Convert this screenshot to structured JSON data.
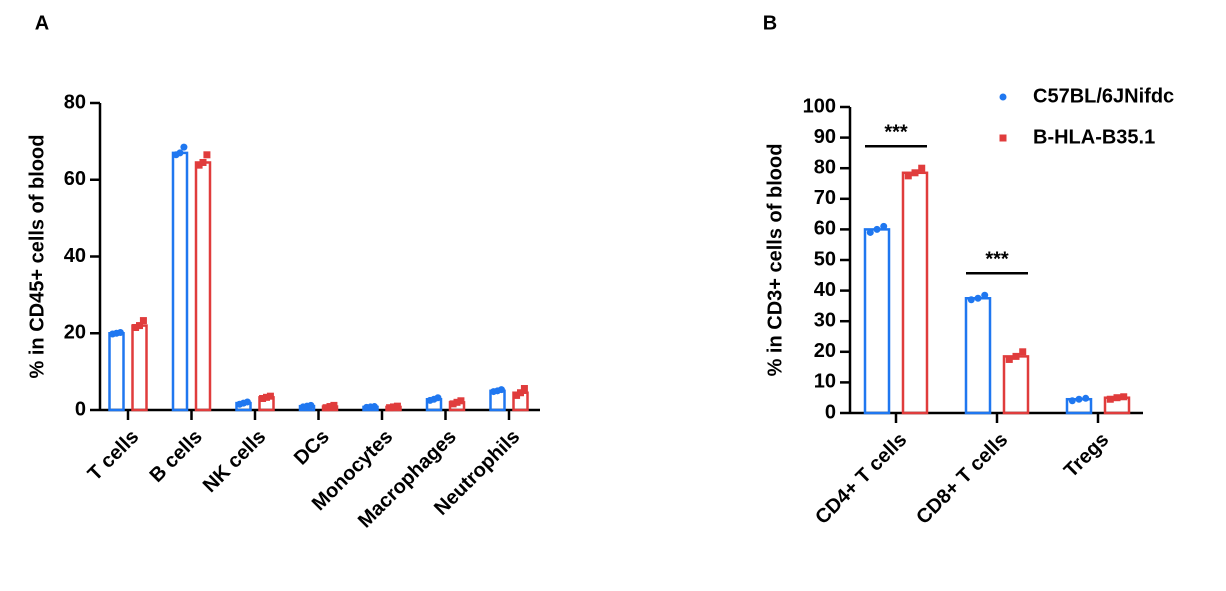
{
  "chart_data": [
    {
      "type": "bar",
      "panel": "A",
      "y_label": "% in CD45+ cells of blood",
      "categories": [
        "T cells",
        "B cells",
        "NK cells",
        "DCs",
        "Monocytes",
        "Macrophages",
        "Neutrophils"
      ],
      "series": [
        {
          "name": "C57BL/6JNifdc",
          "color": "#1f77f0",
          "values": [
            20,
            67,
            1.8,
            1,
            0.8,
            2.8,
            5
          ],
          "points": [
            [
              19.8,
              20,
              20.2
            ],
            [
              66.5,
              67,
              68.5
            ],
            [
              1.5,
              1.8,
              2.1
            ],
            [
              0.8,
              1,
              1.2
            ],
            [
              0.7,
              0.8,
              0.9
            ],
            [
              2.5,
              2.8,
              3.2
            ],
            [
              4.8,
              5,
              5.3
            ]
          ]
        },
        {
          "name": "B-HLA-B35.1",
          "color": "#e03c3c",
          "values": [
            22,
            64.5,
            3.3,
            0.9,
            0.8,
            2,
            4.5
          ],
          "points": [
            [
              21.5,
              22,
              23.3
            ],
            [
              63.8,
              64.5,
              66.5
            ],
            [
              3,
              3.3,
              3.6
            ],
            [
              0.6,
              0.9,
              1.2
            ],
            [
              0.6,
              0.8,
              1
            ],
            [
              1.6,
              2,
              2.4
            ],
            [
              3.8,
              4.5,
              5.6
            ]
          ]
        }
      ],
      "ylim": [
        0,
        80
      ],
      "yticks": [
        0,
        20,
        40,
        60,
        80
      ]
    },
    {
      "type": "bar",
      "panel": "B",
      "y_label": "% in CD3+ cells of blood",
      "categories": [
        "CD4+ T cells",
        "CD8+ T cells",
        "Tregs"
      ],
      "series": [
        {
          "name": "C57BL/6JNifdc",
          "color": "#1f77f0",
          "values": [
            60,
            37.5,
            4.5
          ],
          "points": [
            [
              59,
              60,
              61
            ],
            [
              37,
              37.5,
              38.5
            ],
            [
              4,
              4.5,
              4.8
            ]
          ]
        },
        {
          "name": "B-HLA-B35.1",
          "color": "#e03c3c",
          "values": [
            78.5,
            18.5,
            5
          ],
          "points": [
            [
              77.5,
              78.5,
              80
            ],
            [
              17.5,
              18.5,
              20
            ],
            [
              4.5,
              5,
              5.3
            ]
          ]
        }
      ],
      "annotations": [
        "***",
        "***"
      ],
      "legend": "upper right",
      "ylim": [
        0,
        100
      ],
      "yticks": [
        0,
        10,
        20,
        30,
        40,
        50,
        60,
        70,
        80,
        90,
        100
      ]
    }
  ]
}
